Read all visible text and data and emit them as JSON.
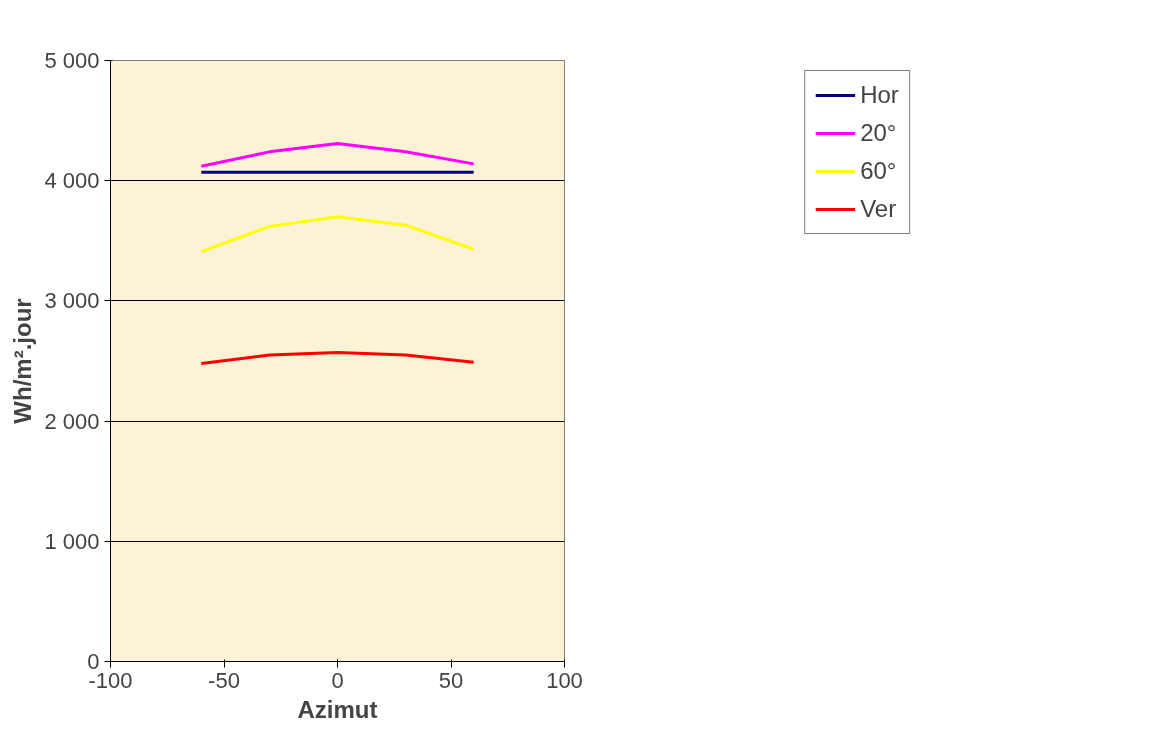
{
  "chart_data": {
    "type": "line",
    "xlabel": "Azimut",
    "ylabel": "Wh/m².jour",
    "x": [
      -60,
      -30,
      0,
      30,
      60
    ],
    "series": [
      {
        "name": "Hor",
        "color": "#000080",
        "values": [
          4070,
          4070,
          4070,
          4070,
          4070
        ]
      },
      {
        "name": "20°",
        "color": "#ff00ff",
        "values": [
          4120,
          4240,
          4310,
          4240,
          4140
        ]
      },
      {
        "name": "60°",
        "color": "#ffff00",
        "values": [
          3410,
          3620,
          3700,
          3630,
          3430
        ]
      },
      {
        "name": "Ver",
        "color": "#ff0000",
        "values": [
          2480,
          2550,
          2570,
          2550,
          2490
        ]
      }
    ],
    "xlim": [
      -100,
      100
    ],
    "xticks": [
      -100,
      -50,
      0,
      50,
      100
    ],
    "ylim": [
      0,
      5000
    ],
    "yticks": [
      {
        "value": 0,
        "label": "0"
      },
      {
        "value": 1000,
        "label": "1 000"
      },
      {
        "value": 2000,
        "label": "2 000"
      },
      {
        "value": 3000,
        "label": "3 000"
      },
      {
        "value": 4000,
        "label": "4 000"
      },
      {
        "value": 5000,
        "label": "5 000"
      }
    ],
    "grid": "y",
    "legend": "top right",
    "marker": "none",
    "line_style": "solid"
  }
}
